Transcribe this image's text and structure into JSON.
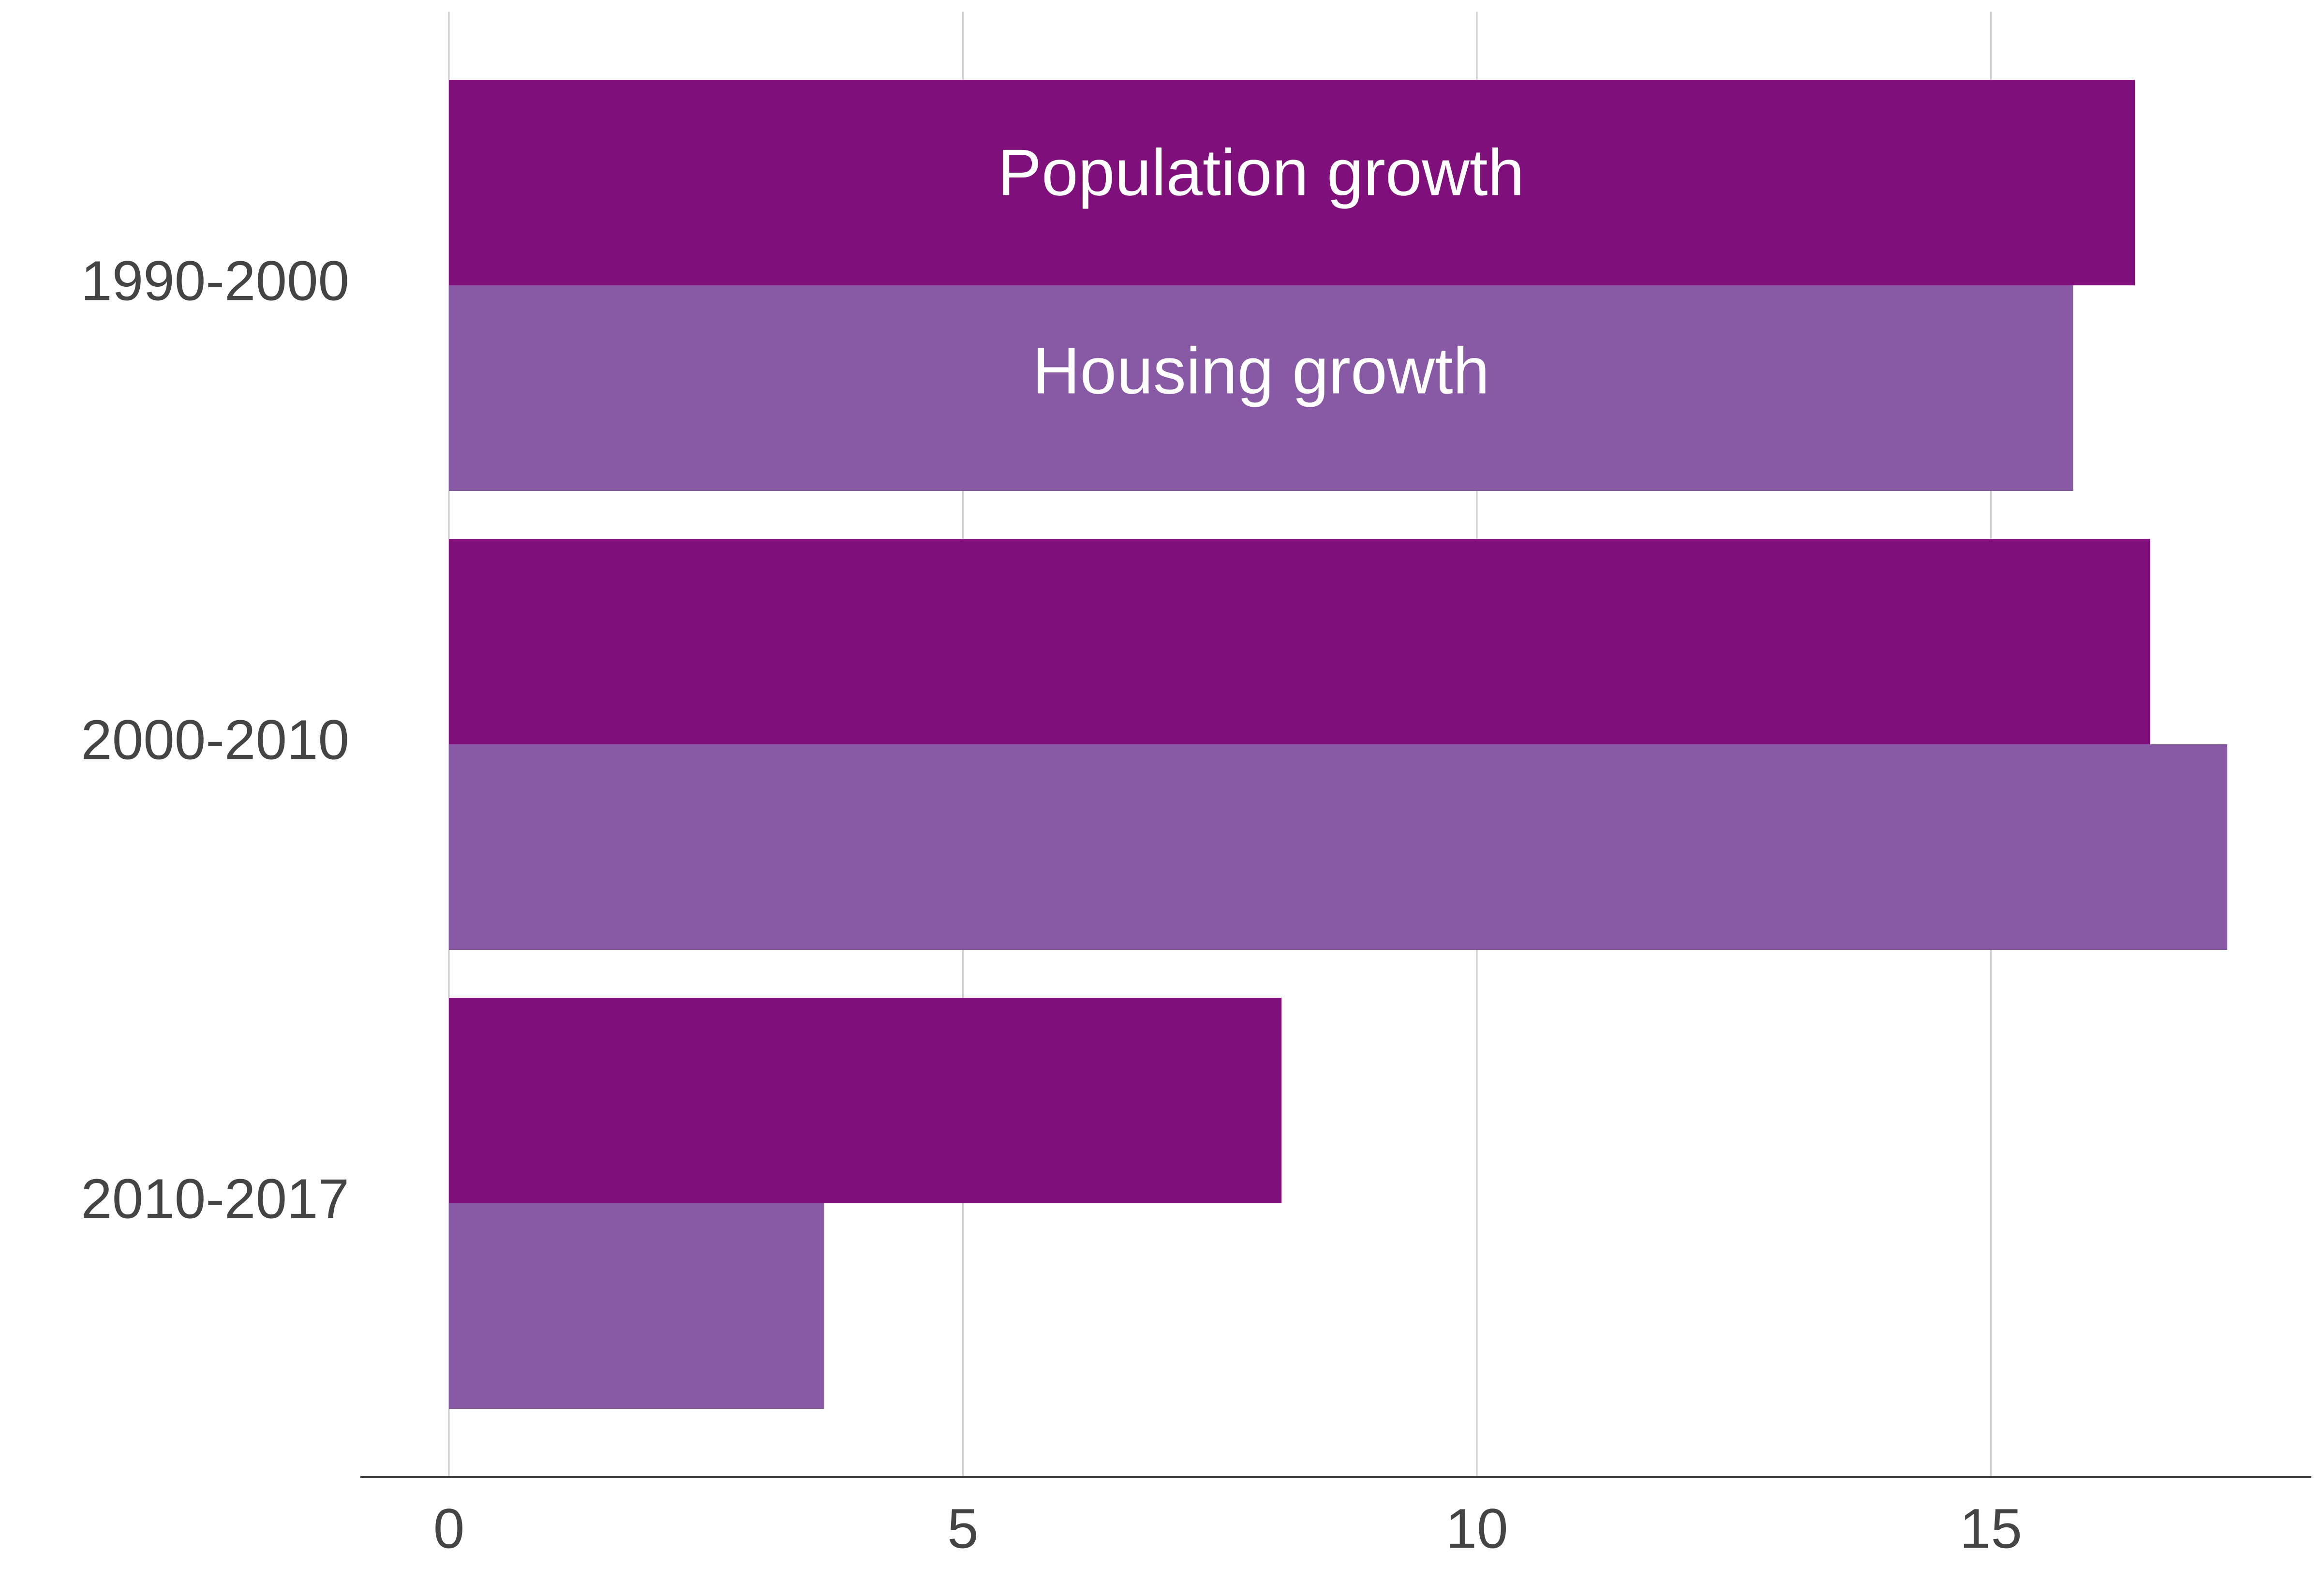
{
  "chart_data": {
    "type": "bar",
    "orientation": "horizontal",
    "categories": [
      "1990-2000",
      "2000-2010",
      "2010-2017"
    ],
    "series": [
      {
        "name": "Population growth",
        "values": [
          16.4,
          16.55,
          8.1
        ],
        "color": "#7f0f7a"
      },
      {
        "name": "Housing growth",
        "values": [
          15.8,
          17.3,
          3.65
        ],
        "color": "#8859a5"
      }
    ],
    "x_ticks": [
      0,
      5,
      10,
      15
    ],
    "xlim": [
      0,
      18
    ],
    "grid": "vertical",
    "legend": "inline labels on first bars"
  }
}
